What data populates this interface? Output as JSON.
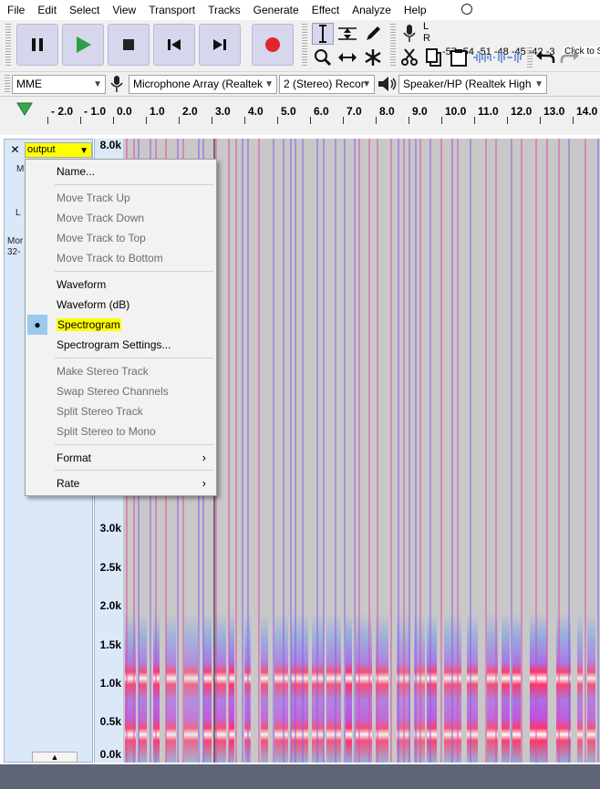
{
  "menubar": {
    "items": [
      "File",
      "Edit",
      "Select",
      "View",
      "Transport",
      "Tracks",
      "Generate",
      "Effect",
      "Analyze",
      "Help"
    ]
  },
  "transport": {
    "pause": "pause-icon",
    "play": "play-icon",
    "stop": "stop-icon",
    "skip_start": "skip-to-start-icon",
    "skip_end": "skip-to-end-icon",
    "record": "record-icon",
    "play_color": "#2ea043",
    "record_color": "#e0262b"
  },
  "meter": {
    "mic_label_l": "L",
    "mic_label_r": "R",
    "ticks": "-57 -54 -51 -48 -45 -42 -3",
    "hint": "Click to S"
  },
  "device": {
    "host": "MME",
    "input": "Microphone Array (Realtek",
    "channels": "2 (Stereo) Recor",
    "output": "Speaker/HP (Realtek High"
  },
  "timeline": {
    "ticks": [
      "- 2.0",
      "- 1.0",
      "0.0",
      "1.0",
      "2.0",
      "3.0",
      "4.0",
      "5.0",
      "6.0",
      "7.0",
      "8.0",
      "9.0",
      "10.0",
      "11.0",
      "12.0",
      "13.0",
      "14.0"
    ]
  },
  "track": {
    "close_label": "✕",
    "name": "output",
    "fragments": [
      "M",
      "L",
      "Mor",
      "32-"
    ],
    "collapse_label": "▲"
  },
  "vruler": {
    "ticks": [
      "8.0k",
      "3.0k",
      "2.5k",
      "2.0k",
      "1.5k",
      "1.0k",
      "0.5k",
      "0.0k"
    ]
  },
  "context_menu": {
    "items": [
      {
        "label": "Name...",
        "disabled": false
      },
      {
        "label": "Move Track Up",
        "disabled": true
      },
      {
        "label": "Move Track Down",
        "disabled": true
      },
      {
        "label": "Move Track to Top",
        "disabled": true
      },
      {
        "label": "Move Track to Bottom",
        "disabled": true
      },
      {
        "label": "Waveform",
        "disabled": false
      },
      {
        "label": "Waveform (dB)",
        "disabled": false
      },
      {
        "label": "Spectrogram",
        "disabled": false,
        "checked": true
      },
      {
        "label": "Spectrogram Settings...",
        "disabled": false
      },
      {
        "label": "Make Stereo Track",
        "disabled": true
      },
      {
        "label": "Swap Stereo Channels",
        "disabled": true
      },
      {
        "label": "Split Stereo Track",
        "disabled": true
      },
      {
        "label": "Split Stereo to Mono",
        "disabled": true
      },
      {
        "label": "Format",
        "disabled": false,
        "submenu": true
      },
      {
        "label": "Rate",
        "disabled": false,
        "submenu": true
      }
    ],
    "submenu_glyph": "›",
    "check_glyph": "●"
  }
}
